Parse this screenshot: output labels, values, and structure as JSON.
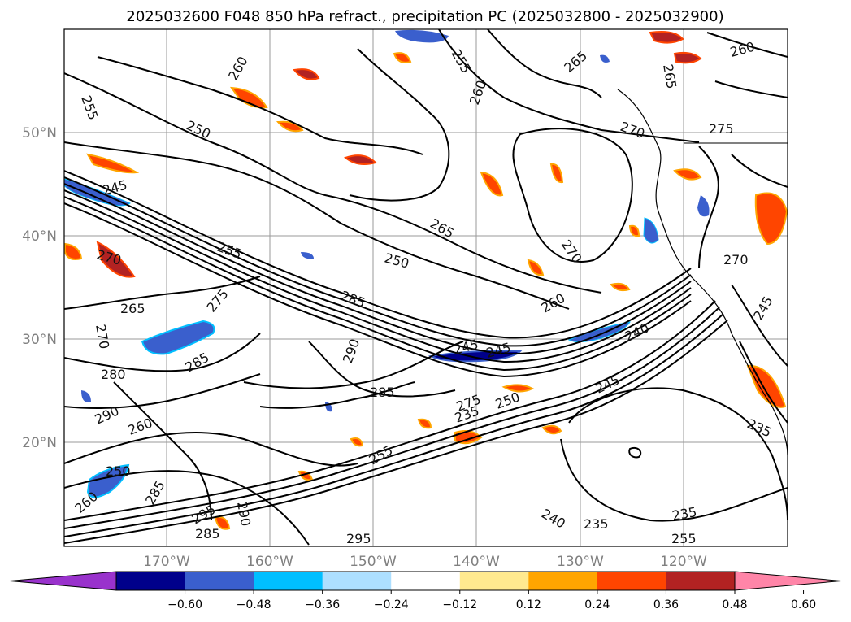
{
  "title": "2025032600 F048 850 hPa refract., precipitation PC (2025032800 - 2025032900)",
  "lat_labels": [
    "50°N",
    "40°N",
    "30°N",
    "20°N"
  ],
  "lon_labels": [
    "170°W",
    "160°W",
    "150°W",
    "140°W",
    "130°W",
    "120°W"
  ],
  "colorbar": {
    "ticks": [
      "−0.60",
      "−0.48",
      "−0.36",
      "−0.24",
      "−0.12",
      "0.12",
      "0.24",
      "0.36",
      "0.48",
      "0.60"
    ],
    "colors": [
      "#9932CC",
      "#00008B",
      "#3A5FCD",
      "#00BFFF",
      "#ADDFFF",
      "#FFFFFF",
      "#FFE98F",
      "#FFA500",
      "#FF4500",
      "#B22222",
      "#FF85A8"
    ]
  },
  "contour_labels": [
    "255",
    "250",
    "245",
    "255",
    "260",
    "265",
    "270",
    "265",
    "250",
    "270",
    "260",
    "255",
    "270",
    "275",
    "285",
    "285",
    "270",
    "280",
    "290",
    "260",
    "290",
    "285",
    "250",
    "260",
    "285",
    "295",
    "285",
    "255",
    "245",
    "240",
    "245",
    "235",
    "235",
    "240",
    "235",
    "255",
    "265",
    "275",
    "260",
    "265",
    "235",
    "270",
    "260",
    "245",
    "245",
    "250",
    "290",
    "275",
    "295"
  ]
}
